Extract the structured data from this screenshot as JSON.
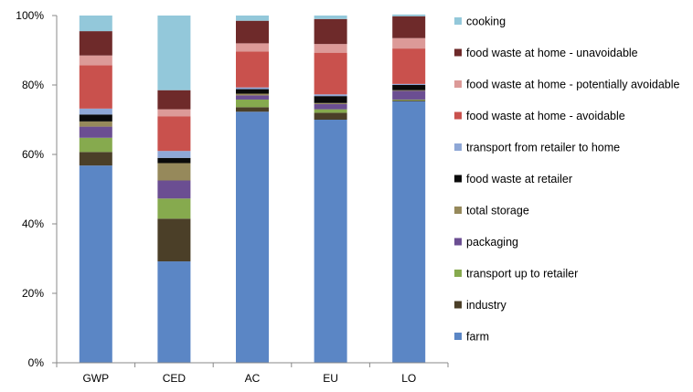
{
  "chart_data": {
    "type": "bar",
    "stacked": true,
    "categories": [
      "GWP",
      "CED",
      "AC",
      "EU",
      "LO"
    ],
    "ylim": [
      0,
      100
    ],
    "yticks": [
      0,
      20,
      40,
      60,
      80,
      100
    ],
    "ytick_labels": [
      "0%",
      "20%",
      "40%",
      "60%",
      "80%",
      "100%"
    ],
    "grid": false,
    "legend_position": "right",
    "series": [
      {
        "name": "farm",
        "color": "#5b86c5",
        "values": [
          56.8,
          29.2,
          72.3,
          70.0,
          75.3
        ]
      },
      {
        "name": "industry",
        "color": "#4b3f28",
        "values": [
          3.9,
          12.3,
          1.3,
          2.0,
          0.3
        ]
      },
      {
        "name": "transport up to retailer",
        "color": "#86aa4e",
        "values": [
          4.1,
          5.8,
          2.2,
          1.0,
          0.2
        ]
      },
      {
        "name": "packaging",
        "color": "#6b4e92",
        "values": [
          3.2,
          5.2,
          1.2,
          1.5,
          2.5
        ]
      },
      {
        "name": "total storage",
        "color": "#96895b",
        "values": [
          1.5,
          5.0,
          0.5,
          0.3,
          0.2
        ]
      },
      {
        "name": "food waste at retailer",
        "color": "#0a0a0a",
        "values": [
          2.0,
          1.5,
          1.3,
          2.0,
          1.5
        ]
      },
      {
        "name": "transport from retailer to home",
        "color": "#8ea7d6",
        "values": [
          1.7,
          2.0,
          0.5,
          0.5,
          0.3
        ]
      },
      {
        "name": "food waste at home - avoidable",
        "color": "#c9514d",
        "values": [
          12.5,
          10.0,
          10.3,
          12.0,
          10.2
        ]
      },
      {
        "name": "food waste at home - potentially avoidable",
        "color": "#dc9a98",
        "values": [
          2.8,
          2.0,
          2.4,
          2.5,
          3.0
        ]
      },
      {
        "name": "food waste at home - unavoidable",
        "color": "#6e2a2a",
        "values": [
          7.0,
          5.5,
          6.5,
          7.2,
          6.3
        ]
      },
      {
        "name": "cooking",
        "color": "#93c8da",
        "values": [
          4.5,
          21.5,
          1.5,
          1.0,
          0.5
        ]
      }
    ]
  }
}
